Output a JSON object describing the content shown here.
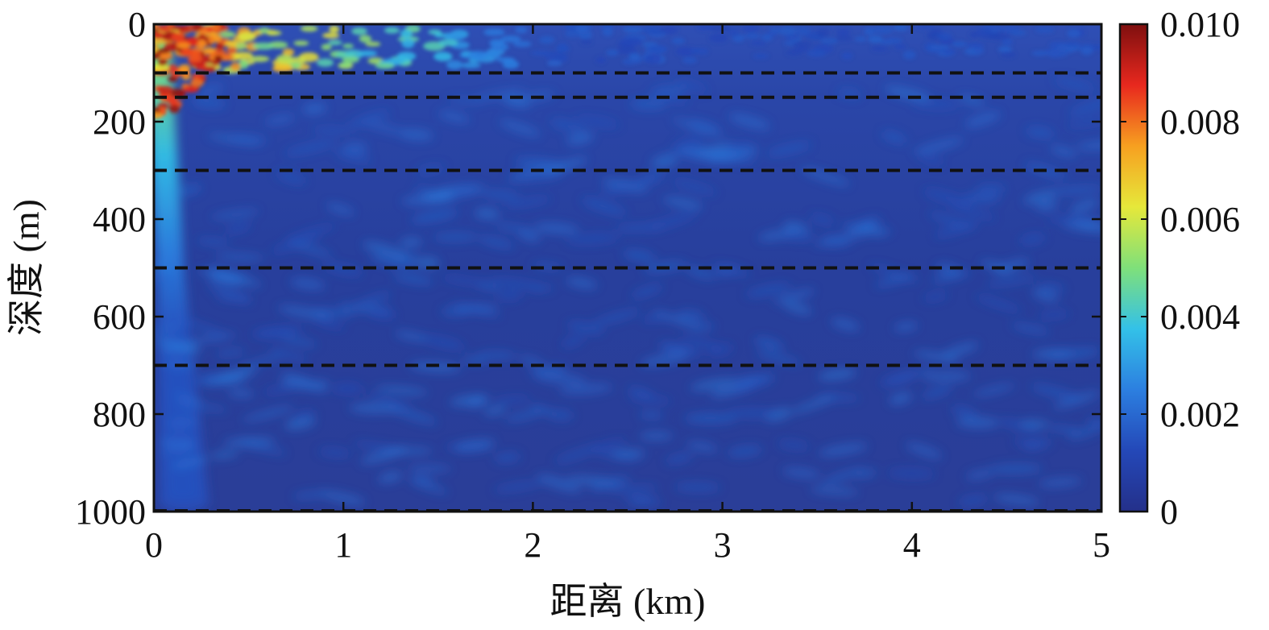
{
  "chart_data": {
    "type": "heatmap",
    "title": "",
    "xlabel": "距离 (km)",
    "ylabel": "深度 (m)",
    "xlim": [
      0,
      5
    ],
    "ylim": [
      0,
      1000
    ],
    "y_inverted": true,
    "xticks": [
      "0",
      "1",
      "2",
      "3",
      "4",
      "5"
    ],
    "xtick_values": [
      0,
      1,
      2,
      3,
      4,
      5
    ],
    "yticks": [
      "0",
      "200",
      "400",
      "600",
      "800",
      "1000"
    ],
    "ytick_values": [
      0,
      200,
      400,
      600,
      800,
      1000
    ],
    "colorbar": {
      "colormap": "jet",
      "range": [
        0,
        0.01
      ],
      "ticks": [
        "0",
        "0.002",
        "0.004",
        "0.006",
        "0.008",
        "0.010"
      ],
      "tick_values": [
        0,
        0.002,
        0.004,
        0.006,
        0.008,
        0.01
      ]
    },
    "layer_boundaries_depth_m": [
      100,
      150,
      300,
      500,
      700,
      1000
    ],
    "layer_line_style": "dashed",
    "layer_line_color": "#111111",
    "field_description_values": {
      "source_depth_m": 0,
      "max_value_near_source": 0.01,
      "background_value": 0.0008
    }
  }
}
